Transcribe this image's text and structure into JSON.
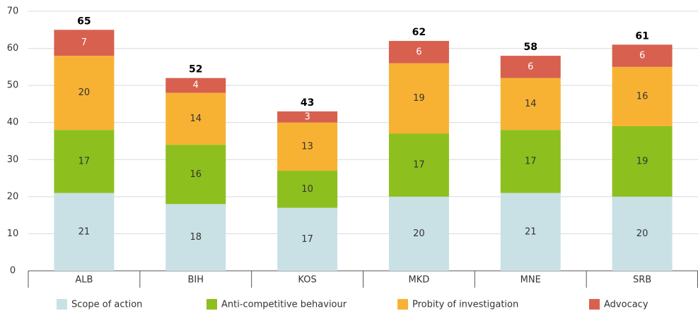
{
  "chart_data": {
    "type": "stacked_bar",
    "categories": [
      "ALB",
      "BIH",
      "KOS",
      "MKD",
      "MNE",
      "SRB"
    ],
    "series": [
      {
        "name": "Scope of action",
        "color": "#c9e1e5",
        "values": [
          21,
          18,
          17,
          20,
          21,
          20
        ]
      },
      {
        "name": "Anti-competitive behaviour",
        "color": "#8dbf1f",
        "values": [
          17,
          16,
          10,
          17,
          17,
          19
        ]
      },
      {
        "name": "Probity of investigation",
        "color": "#f7b234",
        "values": [
          20,
          14,
          13,
          19,
          14,
          16
        ]
      },
      {
        "name": "Advocacy",
        "color": "#d8604f",
        "values": [
          7,
          4,
          3,
          6,
          6,
          6
        ]
      }
    ],
    "totals": [
      65,
      52,
      43,
      62,
      58,
      61
    ],
    "ylim": [
      0,
      70
    ],
    "yticks": [
      0,
      10,
      20,
      30,
      40,
      50,
      60,
      70
    ],
    "grid": true,
    "legend": "bottom"
  }
}
